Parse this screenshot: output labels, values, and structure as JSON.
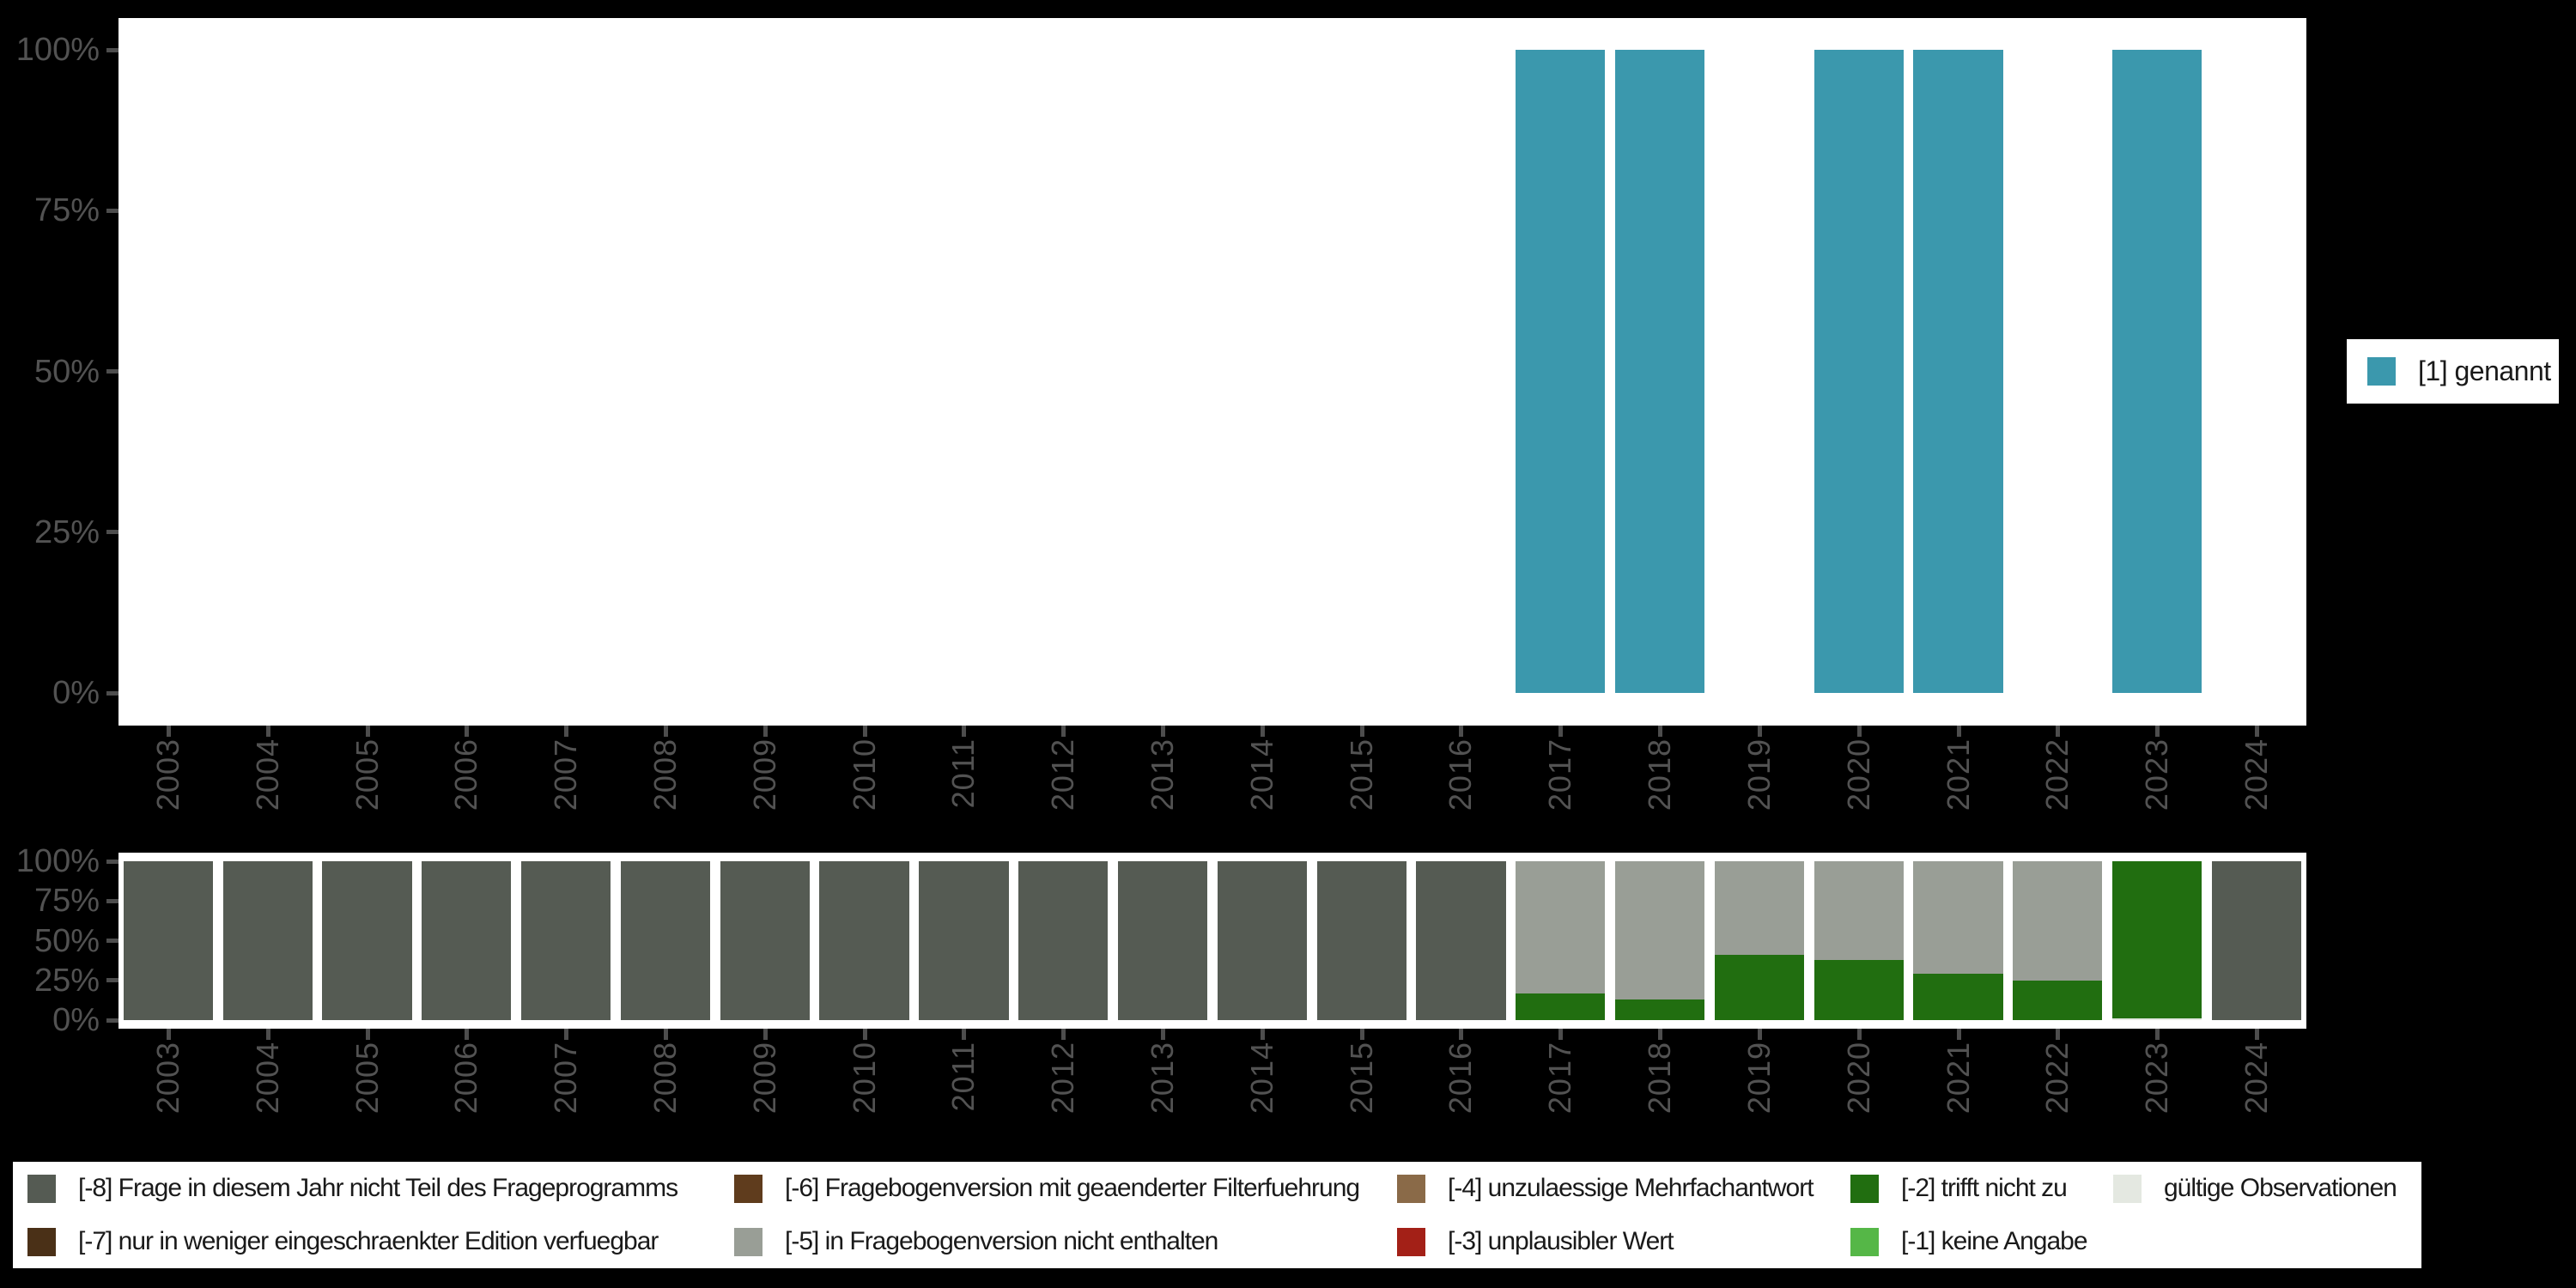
{
  "background": "#000000",
  "panel_background": "#ffffff",
  "axis": {
    "tick_color": "#4d4d4d",
    "label_color": "#525252"
  },
  "colors": {
    "1": "#3b98ad",
    "-8": "#555b53",
    "-7": "#4a3017",
    "-6": "#5f3c1d",
    "-5": "#999e96",
    "-4": "#8a6a48",
    "-3": "#a32017",
    "-2": "#216e10",
    "-1": "#55b747",
    "valid": "#e4e8e1"
  },
  "legend_right": {
    "label": "[1] genannt",
    "swatch_key": "1"
  },
  "legend_bottom": {
    "items": [
      {
        "key": "-8",
        "label": "[-8] Frage in diesem Jahr nicht Teil des Frageprogramms",
        "col": 1,
        "row": 1
      },
      {
        "key": "-7",
        "label": "[-7] nur in weniger eingeschraenkter Edition verfuegbar",
        "col": 1,
        "row": 2
      },
      {
        "key": "-6",
        "label": "[-6] Fragebogenversion mit geaenderter Filterfuehrung",
        "col": 2,
        "row": 1
      },
      {
        "key": "-5",
        "label": "[-5] in Fragebogenversion nicht enthalten",
        "col": 2,
        "row": 2
      },
      {
        "key": "-4",
        "label": "[-4] unzulaessige Mehrfachantwort",
        "col": 3,
        "row": 1
      },
      {
        "key": "-3",
        "label": "[-3] unplausibler Wert",
        "col": 3,
        "row": 2
      },
      {
        "key": "-2",
        "label": "[-2] trifft nicht zu",
        "col": 4,
        "row": 1
      },
      {
        "key": "-1",
        "label": "[-1] keine Angabe",
        "col": 4,
        "row": 2
      },
      {
        "key": "valid",
        "label": "gültige Observationen",
        "col": 5,
        "row": 1
      }
    ]
  },
  "chart_data": [
    {
      "name": "percent-genannt-by-year",
      "type": "bar",
      "stacked": false,
      "categories": [
        "2003",
        "2004",
        "2005",
        "2006",
        "2007",
        "2008",
        "2009",
        "2010",
        "2011",
        "2012",
        "2013",
        "2014",
        "2015",
        "2016",
        "2017",
        "2018",
        "2019",
        "2020",
        "2021",
        "2022",
        "2023",
        "2024"
      ],
      "ylim": [
        0,
        100
      ],
      "grid": false,
      "legend_position": "right",
      "yticks": [
        {
          "label": "0%",
          "value": 0
        },
        {
          "label": "25%",
          "value": 25
        },
        {
          "label": "50%",
          "value": 50
        },
        {
          "label": "75%",
          "value": 75
        },
        {
          "label": "100%",
          "value": 100
        }
      ],
      "stack_order": [
        "1"
      ],
      "series": [
        {
          "name": "[1] genannt",
          "key": "1",
          "values": [
            0,
            0,
            0,
            0,
            0,
            0,
            0,
            0,
            0,
            0,
            0,
            0,
            0,
            0,
            100,
            100,
            0,
            100,
            100,
            0,
            100,
            0
          ]
        }
      ]
    },
    {
      "name": "missing-values-by-year",
      "type": "bar",
      "stacked": true,
      "categories": [
        "2003",
        "2004",
        "2005",
        "2006",
        "2007",
        "2008",
        "2009",
        "2010",
        "2011",
        "2012",
        "2013",
        "2014",
        "2015",
        "2016",
        "2017",
        "2018",
        "2019",
        "2020",
        "2021",
        "2022",
        "2023",
        "2024"
      ],
      "ylim": [
        0,
        100
      ],
      "grid": false,
      "legend_position": "bottom",
      "yticks": [
        {
          "label": "0%",
          "value": 0
        },
        {
          "label": "25%",
          "value": 25
        },
        {
          "label": "50%",
          "value": 50
        },
        {
          "label": "75%",
          "value": 75
        },
        {
          "label": "100%",
          "value": 100
        }
      ],
      "stack_order": [
        "valid",
        "-1",
        "-2",
        "-3",
        "-4",
        "-5",
        "-6",
        "-7",
        "-8"
      ],
      "series": [
        {
          "name": "gültige Observationen",
          "key": "valid",
          "values": [
            0,
            0,
            0,
            0,
            0,
            0,
            0,
            0,
            0,
            0,
            0,
            0,
            0,
            0,
            0,
            0,
            0,
            0,
            0,
            0,
            1,
            0
          ]
        },
        {
          "name": "[-2] trifft nicht zu",
          "key": "-2",
          "values": [
            0,
            0,
            0,
            0,
            0,
            0,
            0,
            0,
            0,
            0,
            0,
            0,
            0,
            0,
            17,
            13,
            41,
            38,
            29,
            25,
            99,
            0
          ]
        },
        {
          "name": "[-5] in Fragebogenversion nicht enthalten",
          "key": "-5",
          "values": [
            0,
            0,
            0,
            0,
            0,
            0,
            0,
            0,
            0,
            0,
            0,
            0,
            0,
            0,
            83,
            87,
            59,
            62,
            71,
            75,
            0,
            0
          ]
        },
        {
          "name": "[-8] Frage in diesem Jahr nicht Teil des Frageprogramms",
          "key": "-8",
          "values": [
            100,
            100,
            100,
            100,
            100,
            100,
            100,
            100,
            100,
            100,
            100,
            100,
            100,
            100,
            0,
            0,
            0,
            0,
            0,
            0,
            0,
            100
          ]
        }
      ]
    }
  ]
}
